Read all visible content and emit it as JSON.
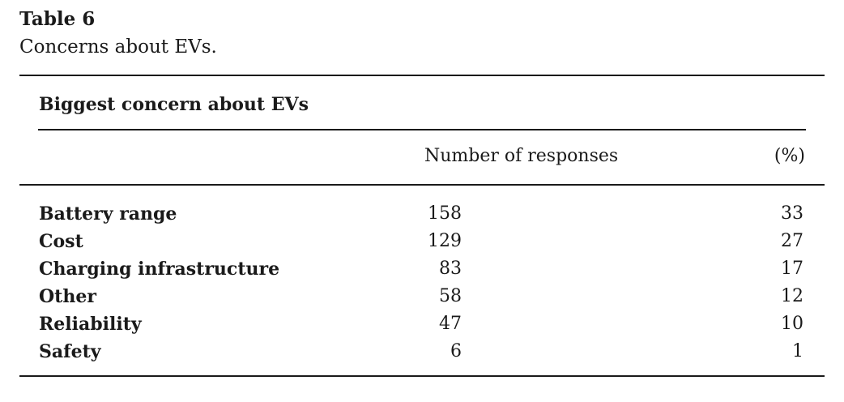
{
  "table": {
    "label": "Table 6",
    "caption": "Concerns about EVs.",
    "group_heading": "Biggest concern about EVs",
    "columns": {
      "responses": "Number of responses",
      "percent": "(%)"
    },
    "rows": [
      {
        "label": "Battery range",
        "count": "158",
        "percent": "33"
      },
      {
        "label": "Cost",
        "count": "129",
        "percent": "27"
      },
      {
        "label": "Charging infrastructure",
        "count": "83",
        "percent": "17"
      },
      {
        "label": "Other",
        "count": "58",
        "percent": "12"
      },
      {
        "label": "Reliability",
        "count": "47",
        "percent": "10"
      },
      {
        "label": "Safety",
        "count": "6",
        "percent": "1"
      }
    ]
  }
}
